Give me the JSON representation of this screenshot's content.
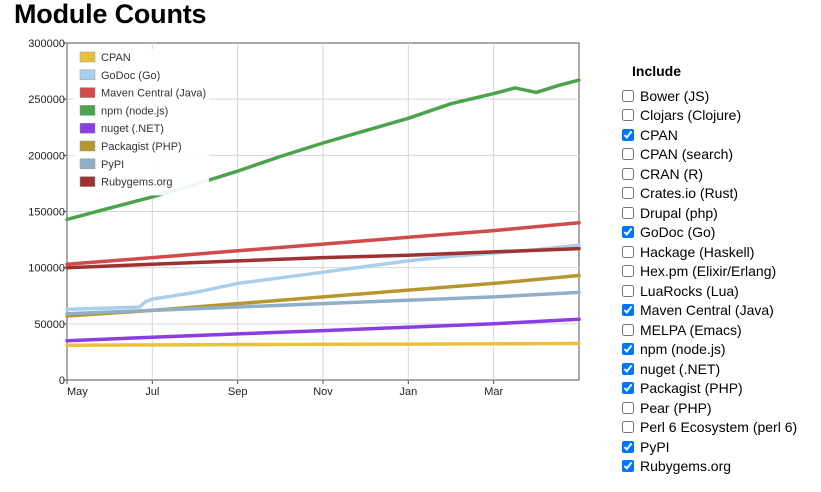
{
  "page": {
    "title": "Module Counts"
  },
  "include": {
    "title": "Include",
    "options": [
      {
        "label": "Bower (JS)",
        "checked": false
      },
      {
        "label": "Clojars (Clojure)",
        "checked": false
      },
      {
        "label": "CPAN",
        "checked": true
      },
      {
        "label": "CPAN (search)",
        "checked": false
      },
      {
        "label": "CRAN (R)",
        "checked": false
      },
      {
        "label": "Crates.io (Rust)",
        "checked": false
      },
      {
        "label": "Drupal (php)",
        "checked": false
      },
      {
        "label": "GoDoc (Go)",
        "checked": true
      },
      {
        "label": "Hackage (Haskell)",
        "checked": false
      },
      {
        "label": "Hex.pm (Elixir/Erlang)",
        "checked": false
      },
      {
        "label": "LuaRocks (Lua)",
        "checked": false
      },
      {
        "label": "Maven Central (Java)",
        "checked": true
      },
      {
        "label": "MELPA (Emacs)",
        "checked": false
      },
      {
        "label": "npm (node.js)",
        "checked": true
      },
      {
        "label": "nuget (.NET)",
        "checked": true
      },
      {
        "label": "Packagist (PHP)",
        "checked": true
      },
      {
        "label": "Pear (PHP)",
        "checked": false
      },
      {
        "label": "Perl 6 Ecosystem (perl 6)",
        "checked": false
      },
      {
        "label": "PyPI",
        "checked": true
      },
      {
        "label": "Rubygems.org",
        "checked": true
      }
    ]
  },
  "chart_data": {
    "type": "line",
    "title": "Module Counts",
    "xlabel": "",
    "ylabel": "",
    "xlim": [
      0,
      12
    ],
    "ylim": [
      0,
      300000
    ],
    "yticks": [
      0,
      50000,
      100000,
      150000,
      200000,
      250000,
      300000
    ],
    "ytick_labels": [
      "0",
      "50000",
      "100000",
      "150000",
      "200000",
      "250000",
      "300000"
    ],
    "xticks": [
      0,
      2,
      4,
      6,
      8,
      10
    ],
    "xtick_labels": [
      "May",
      "Jul",
      "Sep",
      "Nov",
      "Jan",
      "Mar"
    ],
    "grid": true,
    "legend_position": "top-left",
    "series": [
      {
        "name": "CPAN",
        "color": "#e8c23c",
        "x": [
          0,
          4,
          8,
          12
        ],
        "y": [
          31000,
          31500,
          32000,
          32500
        ]
      },
      {
        "name": "GoDoc (Go)",
        "color": "#a9cfed",
        "x": [
          0,
          1,
          1.7,
          1.85,
          2,
          2.5,
          3,
          4,
          5,
          6,
          7,
          8,
          9,
          10,
          11,
          11.5,
          12
        ],
        "y": [
          63000,
          64000,
          65000,
          70000,
          72000,
          75000,
          78000,
          86000,
          91000,
          96000,
          101000,
          106000,
          110000,
          113000,
          116000,
          118000,
          120000
        ]
      },
      {
        "name": "Maven Central (Java)",
        "color": "#d24b4b",
        "x": [
          0,
          2,
          4,
          6,
          8,
          10,
          12
        ],
        "y": [
          103000,
          109000,
          115000,
          121000,
          127000,
          133000,
          140000
        ]
      },
      {
        "name": "npm (node.js)",
        "color": "#4ba34b",
        "x": [
          0,
          1,
          2,
          3,
          4,
          5,
          6,
          7,
          8,
          9,
          10,
          10.5,
          11,
          11.5,
          12
        ],
        "y": [
          143000,
          153000,
          163000,
          174000,
          186000,
          199000,
          211000,
          222000,
          233000,
          246000,
          255000,
          260000,
          256000,
          262000,
          267000
        ]
      },
      {
        "name": "nuget (.NET)",
        "color": "#8a3ee0",
        "x": [
          0,
          2,
          4,
          6,
          8,
          10,
          12
        ],
        "y": [
          35000,
          38000,
          41000,
          44000,
          47000,
          50000,
          54000
        ]
      },
      {
        "name": "Packagist (PHP)",
        "color": "#b8962e",
        "x": [
          0,
          2,
          4,
          6,
          8,
          10,
          12
        ],
        "y": [
          57000,
          62000,
          68000,
          74000,
          80000,
          86000,
          93000
        ]
      },
      {
        "name": "PyPI",
        "color": "#8faec8",
        "x": [
          0,
          2,
          4,
          6,
          8,
          10,
          12
        ],
        "y": [
          59000,
          62000,
          65000,
          68000,
          71000,
          74000,
          78000
        ]
      },
      {
        "name": "Rubygems.org",
        "color": "#9e3232",
        "x": [
          0,
          2,
          4,
          6,
          8,
          10,
          12
        ],
        "y": [
          100000,
          103000,
          106000,
          109000,
          111000,
          114000,
          117000
        ]
      }
    ]
  }
}
